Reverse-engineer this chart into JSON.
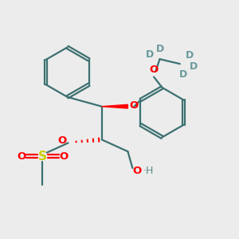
{
  "bg_color": "#ececec",
  "bond_color": "#3d7070",
  "red_color": "#ff0000",
  "yellow_color": "#cccc00",
  "deuterium_color": "#6a9a9a",
  "oh_color": "#5a8888",
  "line_width": 1.6,
  "figsize": [
    3.0,
    3.0
  ],
  "dpi": 100,
  "xlim": [
    0,
    10
  ],
  "ylim": [
    0,
    10
  ]
}
